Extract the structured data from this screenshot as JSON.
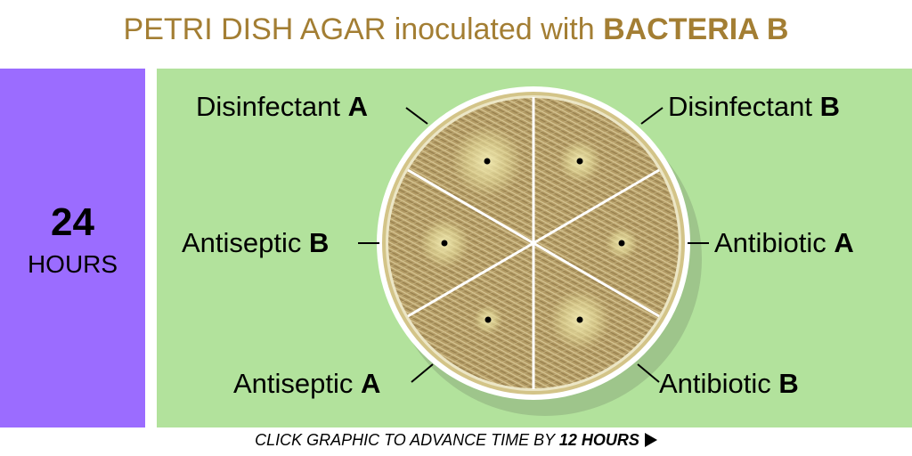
{
  "title": {
    "prefix": "PETRI DISH AGAR inoculated with ",
    "emphasis": "BACTERIA B"
  },
  "time": {
    "value": "24",
    "unit": "HOURS"
  },
  "labels": {
    "disinfectant_a": {
      "text": "Disinfectant ",
      "letter": "A"
    },
    "disinfectant_b": {
      "text": "Disinfectant ",
      "letter": "B"
    },
    "antiseptic_b": {
      "text": "Antiseptic ",
      "letter": "B"
    },
    "antibiotic_a": {
      "text": "Antibiotic ",
      "letter": "A"
    },
    "antiseptic_a": {
      "text": "Antiseptic ",
      "letter": "A"
    },
    "antibiotic_b": {
      "text": "Antibiotic ",
      "letter": "B"
    }
  },
  "footer": {
    "text": "CLICK GRAPHIC TO ADVANCE TIME BY ",
    "emphasis": "12 HOURS"
  },
  "colors": {
    "title": "#a37e33",
    "time_panel": "#9b6cff",
    "stage": "#b2e29c",
    "agar": "#b39b64",
    "clear_zone": "#e6dd9c",
    "dish_rim": "#ffffff"
  }
}
